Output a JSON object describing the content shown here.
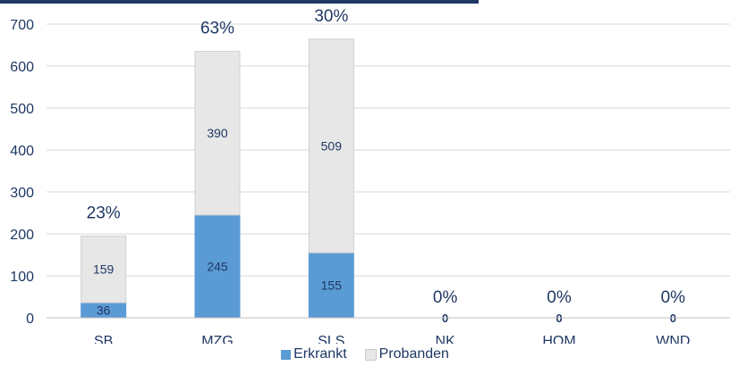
{
  "chart_data": {
    "type": "bar",
    "stacked": true,
    "categories": [
      "SB",
      "MZG",
      "SLS",
      "NK",
      "HOM",
      "WND"
    ],
    "series": [
      {
        "name": "Erkrankt",
        "values": [
          36,
          245,
          155,
          0,
          0,
          0
        ],
        "color": "#5b9bd5"
      },
      {
        "name": "Probanden",
        "values": [
          159,
          390,
          509,
          0,
          0,
          0
        ],
        "color": "#e7e7e7"
      }
    ],
    "stack_value_labels": [
      [
        "36",
        "245",
        "155",
        "0",
        "0",
        "0"
      ],
      [
        "159",
        "390",
        "509",
        "",
        "",
        ""
      ]
    ],
    "percent_labels": [
      "23%",
      "63%",
      "30%",
      "0%",
      "0%",
      "0%"
    ],
    "ylim": [
      0,
      700
    ],
    "yticks": [
      0,
      100,
      200,
      300,
      400,
      500,
      600,
      700
    ],
    "grid": true,
    "legend": "bottom"
  }
}
